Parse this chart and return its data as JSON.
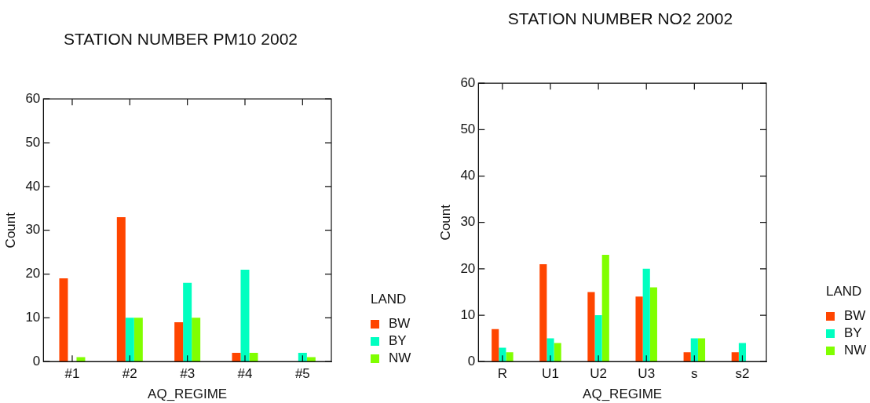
{
  "chart_data": [
    {
      "type": "bar",
      "title": "STATION NUMBER PM10 2002",
      "xlabel": "AQ_REGIME",
      "ylabel": "Count",
      "legend_title": "LAND",
      "legend": "right",
      "categories": [
        "#1",
        "#2",
        "#3",
        "#4",
        "#5"
      ],
      "series": [
        {
          "name": "BW",
          "color": "#ff4500",
          "values": [
            19,
            33,
            9,
            2,
            0
          ]
        },
        {
          "name": "BY",
          "color": "#00ffc0",
          "values": [
            0,
            10,
            18,
            21,
            2
          ]
        },
        {
          "name": "NW",
          "color": "#80ff00",
          "values": [
            1,
            10,
            10,
            2,
            1
          ]
        }
      ],
      "ylim": [
        0,
        60
      ],
      "yticks": [
        0,
        10,
        20,
        30,
        40,
        50,
        60
      ],
      "grid": false
    },
    {
      "type": "bar",
      "title": "STATION NUMBER NO2 2002",
      "xlabel": "AQ_REGIME",
      "ylabel": "Count",
      "legend_title": "LAND",
      "legend": "right",
      "categories": [
        "R",
        "U1",
        "U2",
        "U3",
        "s",
        "s2"
      ],
      "series": [
        {
          "name": "BW",
          "color": "#ff4500",
          "values": [
            7,
            21,
            15,
            14,
            2,
            2
          ]
        },
        {
          "name": "BY",
          "color": "#00ffc0",
          "values": [
            3,
            5,
            10,
            20,
            5,
            4
          ]
        },
        {
          "name": "NW",
          "color": "#80ff00",
          "values": [
            2,
            4,
            23,
            16,
            5,
            0
          ]
        }
      ],
      "ylim": [
        0,
        60
      ],
      "yticks": [
        0,
        10,
        20,
        30,
        40,
        50,
        60
      ],
      "grid": false
    }
  ]
}
